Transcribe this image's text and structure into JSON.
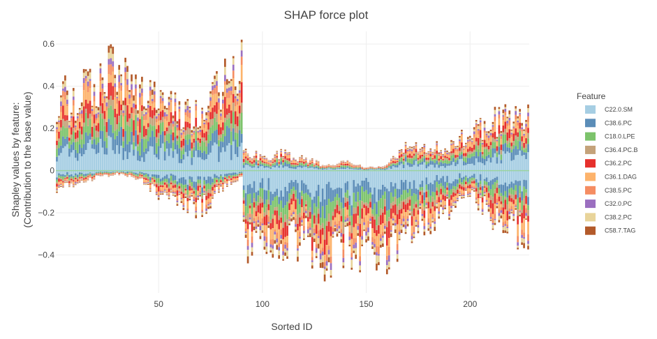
{
  "chart_data": {
    "type": "bar",
    "stacked": true,
    "title": "SHAP force plot",
    "xlabel": "Sorted ID",
    "ylabel_lines": [
      "Shapley values by feature:",
      "(Contribution to the base value)"
    ],
    "xlim": [
      0.5,
      228.5
    ],
    "ylim": [
      -0.58,
      0.66
    ],
    "xticks": [
      50,
      100,
      150,
      200
    ],
    "yticks": [
      -0.4,
      -0.2,
      0,
      0.2,
      0.4,
      0.6
    ],
    "ytick_labels": [
      "−0.4",
      "−0.2",
      "0",
      "0.2",
      "0.4",
      "0.6"
    ],
    "n_samples": 228,
    "legend_title": "Feature",
    "legend_position": "right",
    "features": [
      "C22.0.SM",
      "C38.6.PC",
      "C18.0.LPE",
      "C36.4.PC.B",
      "C36.2.PC",
      "C36.1.DAG",
      "C38.5.PC",
      "C32.0.PC",
      "C38.2.PC",
      "C58.7.TAG"
    ],
    "colors": [
      "#a6cee3",
      "#5b8db8",
      "#7cc36b",
      "#c4a27a",
      "#e6302c",
      "#fdb36b",
      "#f58d62",
      "#9b6fc0",
      "#e8d49a",
      "#b35a2a"
    ],
    "feature_weights": [
      0.24,
      0.14,
      0.13,
      0.07,
      0.11,
      0.12,
      0.06,
      0.04,
      0.05,
      0.04
    ],
    "positive_tops_sampled": {
      "x": [
        1,
        10,
        20,
        28,
        40,
        50,
        60,
        70,
        80,
        90,
        91,
        100,
        110,
        120,
        130,
        140,
        150,
        160,
        170,
        180,
        190,
        200,
        210,
        220,
        228
      ],
      "y": [
        0.42,
        0.4,
        0.52,
        0.6,
        0.45,
        0.38,
        0.35,
        0.3,
        0.5,
        0.6,
        0.1,
        0.08,
        0.1,
        0.07,
        0.03,
        0.05,
        0.02,
        0.03,
        0.15,
        0.12,
        0.15,
        0.22,
        0.28,
        0.3,
        0.32
      ]
    },
    "negative_bottoms_sampled": {
      "x": [
        1,
        10,
        20,
        30,
        40,
        50,
        60,
        70,
        80,
        90,
        91,
        100,
        110,
        120,
        130,
        140,
        150,
        160,
        170,
        180,
        190,
        200,
        210,
        220,
        228
      ],
      "y": [
        -0.1,
        -0.07,
        -0.04,
        -0.02,
        -0.05,
        -0.13,
        -0.17,
        -0.22,
        -0.12,
        -0.03,
        -0.42,
        -0.38,
        -0.42,
        -0.4,
        -0.48,
        -0.46,
        -0.45,
        -0.48,
        -0.36,
        -0.3,
        -0.22,
        -0.15,
        -0.25,
        -0.32,
        -0.38
      ]
    }
  }
}
